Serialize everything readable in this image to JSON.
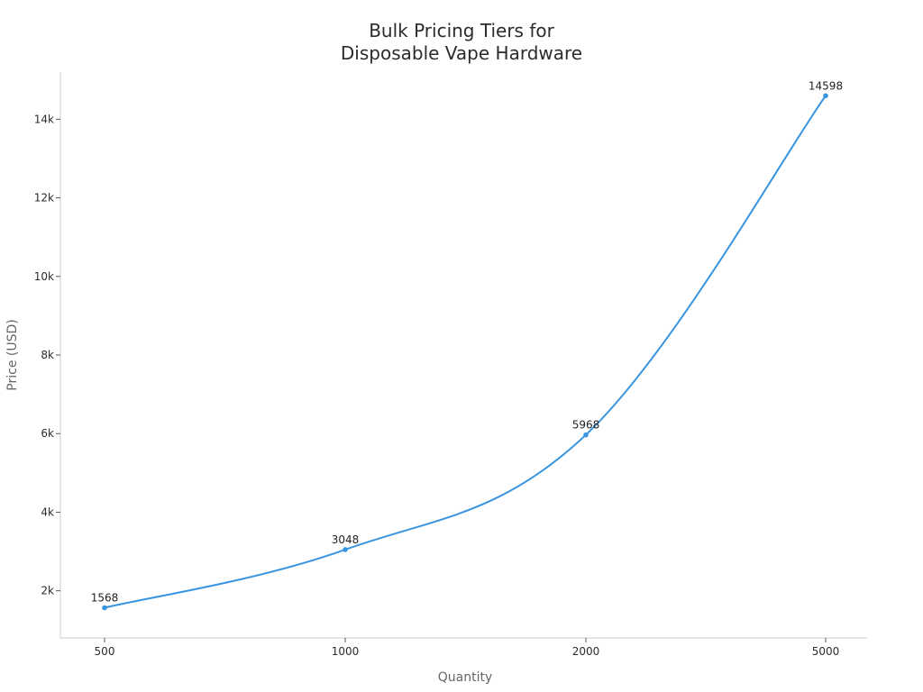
{
  "chart_data": {
    "type": "line",
    "title_lines": [
      "Bulk Pricing Tiers for",
      "Disposable Vape Hardware"
    ],
    "xlabel": "Quantity",
    "ylabel": "Price (USD)",
    "categories": [
      "500",
      "1000",
      "2000",
      "5000"
    ],
    "series": [
      {
        "values": [
          1568,
          3048,
          5968,
          14598
        ]
      }
    ],
    "data_labels": [
      "1568",
      "3048",
      "5968",
      "14598"
    ],
    "ylim": [
      800,
      15200
    ],
    "yticks": [
      2000,
      4000,
      6000,
      8000,
      10000,
      12000,
      14000
    ],
    "ytick_labels": [
      "2k",
      "4k",
      "6k",
      "8k",
      "10k",
      "12k",
      "14k"
    ],
    "grid": false,
    "line_color": "#3a95e0",
    "axis_color": "#cccccc"
  }
}
